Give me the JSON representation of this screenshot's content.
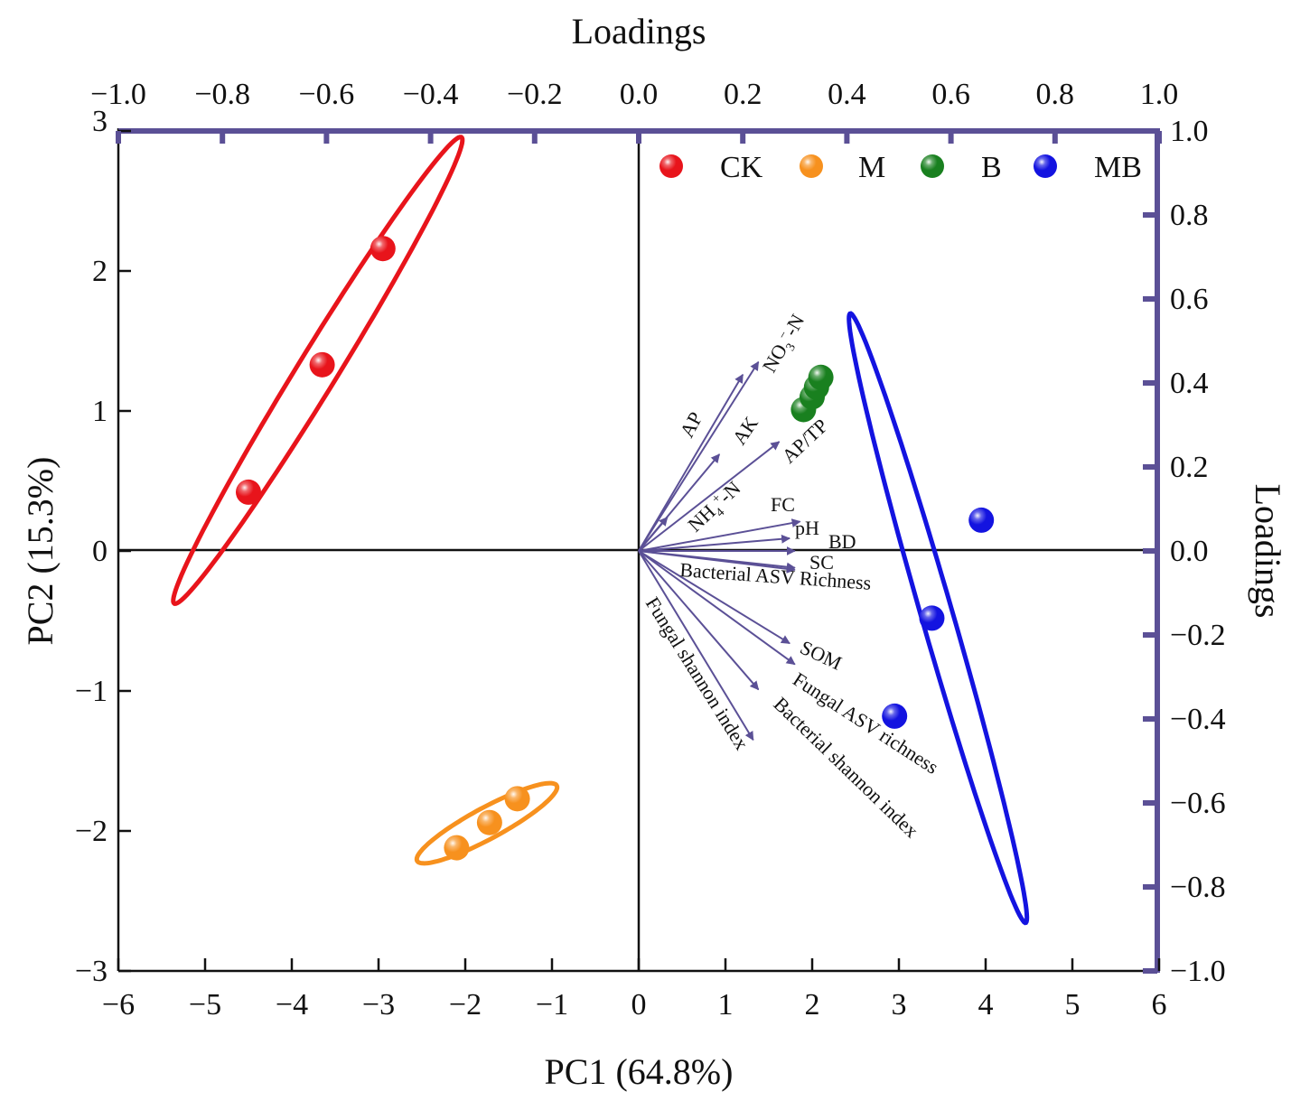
{
  "chart_data": {
    "type": "scatter",
    "xlabel": "PC1 (64.8%)",
    "ylabel": "PC2 (15.3%)",
    "top_axis_title": "Loadings",
    "right_axis_title": "Loadings",
    "xlim": [
      -6,
      6
    ],
    "ylim": [
      -3,
      3
    ],
    "loading_lim": [
      -1.0,
      1.0
    ],
    "x_ticks": [
      "−6",
      "−5",
      "−4",
      "−3",
      "−2",
      "−1",
      "0",
      "1",
      "2",
      "3",
      "4",
      "5",
      "6"
    ],
    "y_ticks": [
      "−3",
      "−2",
      "−1",
      "0",
      "1",
      "2",
      "3"
    ],
    "top_ticks": [
      "−1.0",
      "−0.8",
      "−0.6",
      "−0.4",
      "−0.2",
      "0.0",
      "0.2",
      "0.4",
      "0.6",
      "0.8",
      "1.0"
    ],
    "right_ticks": [
      "−1.0",
      "−0.8",
      "−0.6",
      "−0.4",
      "−0.2",
      "0.0",
      "0.2",
      "0.4",
      "0.6",
      "0.8",
      "1.0"
    ],
    "colors": {
      "axis_secondary": "#5b5096",
      "vector": "#5b5096"
    },
    "series": [
      {
        "name": "CK",
        "color": "#e8141b",
        "points": [
          [
            -4.5,
            0.42
          ],
          [
            -3.65,
            1.33
          ],
          [
            -2.95,
            2.16
          ]
        ],
        "ellipse": {
          "cx": -3.7,
          "cy": 1.29,
          "rx": 2.35,
          "ry": 0.19,
          "angle_deg": 45
        }
      },
      {
        "name": "M",
        "color": "#f7911e",
        "points": [
          [
            -2.1,
            -2.12
          ],
          [
            -1.72,
            -1.94
          ],
          [
            -1.4,
            -1.77
          ]
        ],
        "ellipse": {
          "cx": -1.75,
          "cy": -1.945,
          "rx": 0.85,
          "ry": 0.12,
          "angle_deg": 18
        }
      },
      {
        "name": "B",
        "color": "#19801f",
        "points": [
          [
            1.9,
            1.01
          ],
          [
            2.0,
            1.1
          ],
          [
            2.05,
            1.17
          ],
          [
            2.1,
            1.24
          ]
        ],
        "ellipse": null
      },
      {
        "name": "MB",
        "color": "#1313e0",
        "points": [
          [
            3.95,
            0.22
          ],
          [
            3.38,
            -0.48
          ],
          [
            2.95,
            -1.18
          ]
        ],
        "ellipse": {
          "cx": 3.45,
          "cy": -0.48,
          "rx": 2.4,
          "ry": 0.17,
          "angle_deg": -65
        }
      }
    ],
    "loadings": [
      {
        "name": "NO3-N",
        "x": 0.23,
        "y": 0.45
      },
      {
        "name": "AP",
        "x": 0.2,
        "y": 0.42
      },
      {
        "name": "AK",
        "x": 0.155,
        "y": 0.23
      },
      {
        "name": "AP/TP",
        "x": 0.27,
        "y": 0.26
      },
      {
        "name": "NH4+-N",
        "x": 0.055,
        "y": 0.08
      },
      {
        "name": "FC",
        "x": 0.31,
        "y": 0.07
      },
      {
        "name": "pH",
        "x": 0.29,
        "y": 0.03
      },
      {
        "name": "BD",
        "x": 0.3,
        "y": 0.0
      },
      {
        "name": "SC",
        "x": 0.3,
        "y": -0.04
      },
      {
        "name": "Bacterial ASV Richness",
        "x": 0.3,
        "y": -0.045
      },
      {
        "name": "SOM",
        "x": 0.29,
        "y": -0.22
      },
      {
        "name": "Fungal ASV richness",
        "x": 0.3,
        "y": -0.27
      },
      {
        "name": "Bacterial shannon index",
        "x": 0.23,
        "y": -0.33
      },
      {
        "name": "Fungal shannon index",
        "x": 0.22,
        "y": -0.45
      }
    ],
    "vector_labels": {
      "ap": "AP",
      "ak": "AK",
      "aptp": "AP/TP",
      "no3_main": "NO",
      "no3_sub": "3",
      "no3_sup": "−",
      "no3_tail": "-N",
      "nh4_main": "NH",
      "nh4_sub": "4",
      "nh4_sup": "+",
      "nh4_tail": "-N",
      "fc": "FC",
      "ph": "pH",
      "bd": "BD",
      "sc": "SC",
      "bact_rich": "Bacterial ASV Richness",
      "som": "SOM",
      "fung_rich": "Fungal ASV richness",
      "bact_shan": "Bacterial shannon index",
      "fung_shan": "Fungal shannon index"
    },
    "legend": [
      "CK",
      "M",
      "B",
      "MB"
    ],
    "legend_position": "top-right"
  }
}
